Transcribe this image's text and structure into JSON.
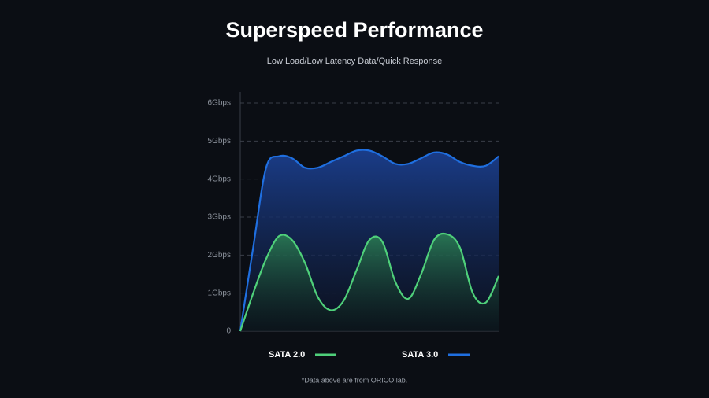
{
  "chart_data": {
    "type": "area",
    "title": "Superspeed Performance",
    "subtitle": "Low Load/Low Latency Data/Quick Response",
    "footnote": "*Data above are from ORICO lab.",
    "x": [
      0,
      1,
      2,
      3,
      4,
      5,
      6,
      7,
      8,
      9,
      10,
      11,
      12,
      13,
      14,
      15,
      16,
      17,
      18,
      19,
      20
    ],
    "xlim": [
      0,
      20
    ],
    "ylim": [
      0,
      6
    ],
    "yticks": [
      0,
      {
        "value": 1,
        "label": "1Gbps"
      },
      {
        "value": 2,
        "label": "2Gbps"
      },
      {
        "value": 3,
        "label": "3Gbps"
      },
      {
        "value": 4,
        "label": "4Gbps"
      },
      {
        "value": 5,
        "label": "5Gbps"
      },
      {
        "value": 6,
        "label": "6Gbps"
      }
    ],
    "grid": true,
    "series": [
      {
        "name": "SATA 2.0",
        "color": "#4fd07a",
        "values": [
          0,
          1.0,
          1.9,
          2.5,
          2.4,
          1.8,
          0.9,
          0.55,
          0.8,
          1.6,
          2.4,
          2.35,
          1.3,
          0.85,
          1.5,
          2.4,
          2.55,
          2.2,
          1.0,
          0.75,
          1.45
        ]
      },
      {
        "name": "SATA 3.0",
        "color": "#1f6fe0",
        "values": [
          0,
          2.2,
          4.3,
          4.6,
          4.55,
          4.3,
          4.3,
          4.45,
          4.6,
          4.75,
          4.75,
          4.6,
          4.4,
          4.4,
          4.55,
          4.7,
          4.65,
          4.45,
          4.35,
          4.35,
          4.6
        ]
      }
    ]
  }
}
